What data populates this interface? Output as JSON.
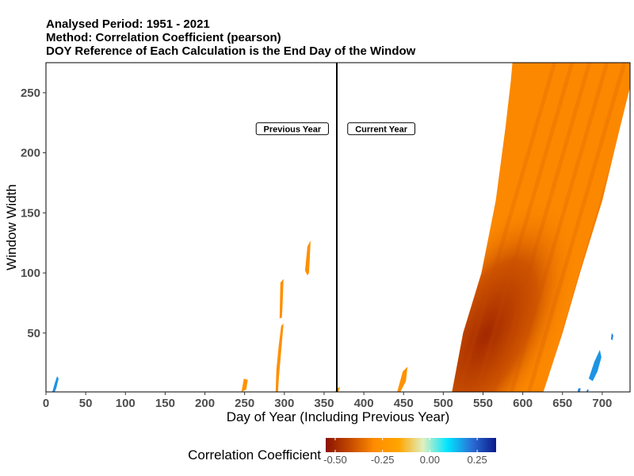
{
  "titles": [
    "Analysed Period: 1951 - 2021",
    "Method: Correlation Coefficient (pearson)",
    "DOY Reference of Each Calculation is the End Day of the Window"
  ],
  "chart_data": {
    "type": "heatmap",
    "xlabel": "Day of Year  (Including Previous Year)",
    "ylabel": "Window Width",
    "xlim": [
      0,
      735
    ],
    "ylim": [
      1,
      275
    ],
    "xticks": [
      0,
      50,
      100,
      150,
      200,
      250,
      300,
      350,
      400,
      450,
      500,
      550,
      600,
      650,
      700
    ],
    "yticks": [
      50,
      100,
      150,
      200,
      250
    ],
    "grid": false,
    "divider_x": 366,
    "annotations": [
      {
        "text": "Previous Year",
        "x": 310,
        "y": 220
      },
      {
        "text": "Current Year",
        "x": 422,
        "y": 220
      }
    ],
    "legend": {
      "title": "Correlation Coefficient",
      "position": "bottom",
      "range": [
        -0.55,
        0.35
      ],
      "ticks": [
        "-0.50",
        "-0.25",
        "0.00",
        "0.25"
      ],
      "tick_values": [
        -0.5,
        -0.25,
        0.0,
        0.25
      ],
      "colors": [
        "#8b1200",
        "#c54a00",
        "#ff8c00",
        "#ffa500",
        "#e0f0c0",
        "#00e5ff",
        "#2b6fd6",
        "#0b1a8a"
      ]
    },
    "main_region": {
      "value": -0.3,
      "strong_core_value": -0.5,
      "core_day": 553,
      "core_window": 48,
      "left_edge": [
        [
          511,
          1
        ],
        [
          525,
          50
        ],
        [
          548,
          100
        ],
        [
          566,
          160
        ],
        [
          578,
          220
        ],
        [
          585,
          260
        ],
        [
          587,
          275
        ]
      ],
      "right_edge": [
        [
          626,
          1
        ],
        [
          650,
          50
        ],
        [
          672,
          100
        ],
        [
          700,
          160
        ],
        [
          722,
          220
        ],
        [
          737,
          260
        ],
        [
          737,
          275
        ]
      ]
    },
    "small_regions": [
      {
        "value": -0.28,
        "points": [
          [
            326,
            102
          ],
          [
            329,
            122
          ],
          [
            333,
            127
          ],
          [
            332,
            112
          ],
          [
            331,
            100
          ],
          [
            329,
            98
          ]
        ]
      },
      {
        "value": -0.28,
        "points": [
          [
            294,
            62
          ],
          [
            295,
            92
          ],
          [
            299,
            95
          ],
          [
            298,
            78
          ],
          [
            297,
            63
          ]
        ]
      },
      {
        "value": -0.28,
        "points": [
          [
            289,
            1
          ],
          [
            290,
            20
          ],
          [
            293,
            40
          ],
          [
            296,
            56
          ],
          [
            299,
            58
          ],
          [
            296,
            35
          ],
          [
            293,
            12
          ],
          [
            292,
            1
          ]
        ]
      },
      {
        "value": -0.26,
        "points": [
          [
            246,
            1
          ],
          [
            249,
            12
          ],
          [
            254,
            11
          ],
          [
            252,
            3
          ]
        ]
      },
      {
        "value": -0.26,
        "points": [
          [
            442,
            1
          ],
          [
            449,
            18
          ],
          [
            455,
            22
          ],
          [
            453,
            10
          ],
          [
            446,
            1
          ]
        ]
      },
      {
        "value": -0.26,
        "points": [
          [
            364,
            1
          ],
          [
            366,
            4
          ],
          [
            370,
            5
          ],
          [
            368,
            1
          ]
        ]
      },
      {
        "value": 0.18,
        "points": [
          [
            8,
            1
          ],
          [
            11,
            8
          ],
          [
            14,
            14
          ],
          [
            16,
            12
          ],
          [
            13,
            4
          ],
          [
            11,
            1
          ]
        ]
      },
      {
        "value": 0.18,
        "points": [
          [
            683,
            12
          ],
          [
            690,
            26
          ],
          [
            697,
            36
          ],
          [
            699,
            30
          ],
          [
            694,
            18
          ],
          [
            688,
            10
          ]
        ]
      },
      {
        "value": 0.2,
        "points": [
          [
            711,
            45
          ],
          [
            712,
            50
          ],
          [
            714,
            48
          ],
          [
            713,
            44
          ]
        ]
      },
      {
        "value": 0.2,
        "points": [
          [
            669,
            1
          ],
          [
            670,
            4
          ],
          [
            673,
            4
          ],
          [
            672,
            1
          ]
        ]
      },
      {
        "value": 0.2,
        "points": [
          [
            680,
            1
          ],
          [
            681,
            3
          ],
          [
            683,
            3
          ],
          [
            682,
            1
          ]
        ]
      }
    ]
  }
}
